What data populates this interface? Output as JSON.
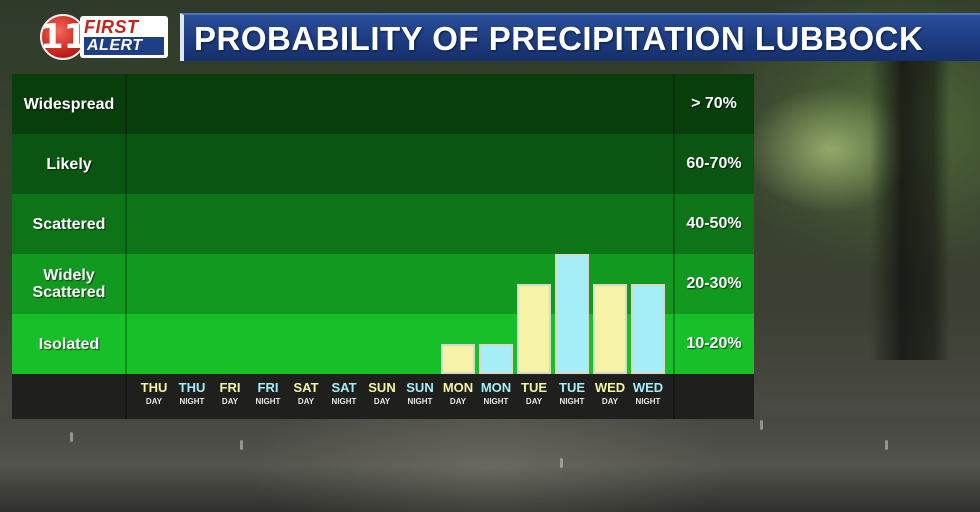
{
  "logo": {
    "number": "11",
    "line1": "FIRST",
    "line2": "ALERT"
  },
  "header": {
    "title": "PROBABILITY OF PRECIPITATION LUBBOCK"
  },
  "colors": {
    "band_widespread": "#073e0c",
    "band_likely": "#0a5512",
    "band_scattered": "#0d7518",
    "band_widely_scattered": "#129920",
    "band_isolated": "#17c029",
    "day_bar": "#f7f3a6",
    "night_bar": "#a6eef7",
    "day_text": "#f7f3a6",
    "night_text": "#a6eef7"
  },
  "chart_data": {
    "type": "bar",
    "title": "PROBABILITY OF PRECIPITATION LUBBOCK",
    "categories_labels": [
      {
        "day": "THU",
        "part": "DAY"
      },
      {
        "day": "THU",
        "part": "NIGHT"
      },
      {
        "day": "FRI",
        "part": "DAY"
      },
      {
        "day": "FRI",
        "part": "NIGHT"
      },
      {
        "day": "SAT",
        "part": "DAY"
      },
      {
        "day": "SAT",
        "part": "NIGHT"
      },
      {
        "day": "SUN",
        "part": "DAY"
      },
      {
        "day": "SUN",
        "part": "NIGHT"
      },
      {
        "day": "MON",
        "part": "DAY"
      },
      {
        "day": "MON",
        "part": "NIGHT"
      },
      {
        "day": "TUE",
        "part": "DAY"
      },
      {
        "day": "TUE",
        "part": "NIGHT"
      },
      {
        "day": "WED",
        "part": "DAY"
      },
      {
        "day": "WED",
        "part": "NIGHT"
      }
    ],
    "values_band_level": [
      0,
      0,
      0,
      0,
      0,
      0,
      0,
      0,
      0.5,
      0.5,
      1.5,
      2,
      1.5,
      1.5
    ],
    "bands": [
      {
        "label": "Widespread",
        "range": "> 70%"
      },
      {
        "label": "Likely",
        "range": "60-70%"
      },
      {
        "label": "Scattered",
        "range": "40-50%"
      },
      {
        "label": "Widely Scattered",
        "range": "20-30%"
      },
      {
        "label": "Isolated",
        "range": "10-20%"
      }
    ],
    "ylim_band_level": [
      0,
      5
    ],
    "grid": false,
    "legend": "none"
  }
}
